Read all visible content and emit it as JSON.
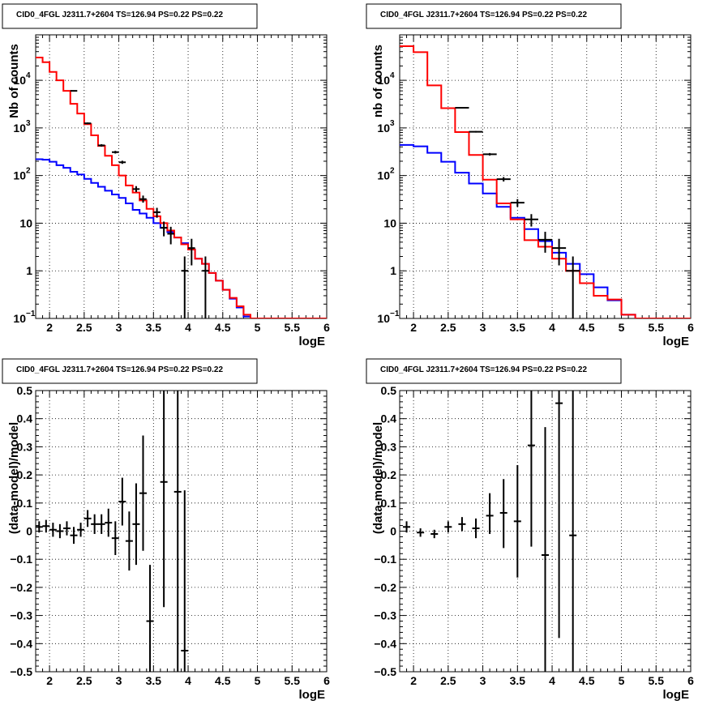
{
  "colors": {
    "data": "#000000",
    "model": "#ff0000",
    "background": "#0000ff",
    "grid": "#000000"
  },
  "panels": [
    {
      "title": "CID0_4FGL J2311.7+2604 TS=126.94 PS=0.22 PS=0.22",
      "chart_data": {
        "type": "histogram",
        "xlabel": "logE",
        "ylabel": "Nb of counts",
        "xlim": [
          1.8,
          6.0
        ],
        "ylim": [
          0.1,
          90000
        ],
        "log_y": true,
        "grid": true,
        "x_ticks": [
          {
            "v": 2,
            "t": "2"
          },
          {
            "v": 2.5,
            "t": "2.5"
          },
          {
            "v": 3,
            "t": "3"
          },
          {
            "v": 3.5,
            "t": "3.5"
          },
          {
            "v": 4,
            "t": "4"
          },
          {
            "v": 4.5,
            "t": "4.5"
          },
          {
            "v": 5,
            "t": "5"
          },
          {
            "v": 5.5,
            "t": "5.5"
          },
          {
            "v": 6,
            "t": "6"
          }
        ],
        "y_ticks": [
          {
            "v": 0.1,
            "t": "10",
            "sup": "−1"
          },
          {
            "v": 1,
            "t": "1"
          },
          {
            "v": 10,
            "t": "10"
          },
          {
            "v": 100,
            "t": "10",
            "sup": "2"
          },
          {
            "v": 1000,
            "t": "10",
            "sup": "3"
          },
          {
            "v": 10000,
            "t": "10",
            "sup": "4"
          }
        ],
        "bin_edges": [
          1.8,
          1.9,
          2.0,
          2.1,
          2.2,
          2.3,
          2.4,
          2.5,
          2.6,
          2.7,
          2.8,
          2.9,
          3.0,
          3.1,
          3.2,
          3.3,
          3.4,
          3.5,
          3.6,
          3.7,
          3.8,
          3.9,
          4.0,
          4.1,
          4.2,
          4.3,
          4.4,
          4.5,
          4.6,
          4.7,
          4.8,
          4.9,
          5.0,
          5.1,
          5.2,
          5.3,
          5.4,
          5.5,
          5.6,
          5.7,
          5.8,
          5.9,
          6.0
        ],
        "series": [
          {
            "name": "",
            "color": "#0000ff",
            "style": "step",
            "values": [
              220,
              215,
              195,
              165,
              145,
              120,
              105,
              85,
              70,
              58,
              48,
              40,
              34,
              26,
              19,
              16,
              13,
              10,
              8,
              6.5,
              5,
              3.8,
              2.8,
              1.8,
              1.4,
              0.9,
              0.62,
              0.4,
              0.26,
              0.17,
              0.11,
              0.1,
              0.1,
              0.1,
              0.1,
              0.1,
              0.1,
              0.1,
              0.1,
              0.1,
              0.1,
              0.1
            ]
          },
          {
            "name": "",
            "color": "#ff0000",
            "style": "step",
            "values": [
              30000,
              24000,
              15000,
              10000,
              6000,
              3200,
              2000,
              1200,
              700,
              420,
              260,
              165,
              100,
              62,
              44,
              30,
              20,
              14,
              10,
              7,
              5,
              3.6,
              2.8,
              1.8,
              1.4,
              0.9,
              0.62,
              0.4,
              0.27,
              0.18,
              0.12,
              0.1,
              0.1,
              0.1,
              0.1,
              0.1,
              0.1,
              0.1,
              0.1,
              0.1,
              0.1,
              0.1
            ]
          },
          {
            "name": "",
            "color": "#000000",
            "style": "errorbar",
            "points": [
              {
                "x": 2.35,
                "y": 6000,
                "ylo": 5900,
                "yhi": 6100
              },
              {
                "x": 2.55,
                "y": 1250,
                "ylo": 1200,
                "yhi": 1300
              },
              {
                "x": 2.75,
                "y": 430,
                "ylo": 405,
                "yhi": 455
              },
              {
                "x": 2.95,
                "y": 310,
                "ylo": 290,
                "yhi": 330
              },
              {
                "x": 3.05,
                "y": 190,
                "ylo": 176,
                "yhi": 205
              },
              {
                "x": 3.25,
                "y": 52,
                "ylo": 45,
                "yhi": 60
              },
              {
                "x": 3.35,
                "y": 32,
                "ylo": 27,
                "yhi": 38
              },
              {
                "x": 3.55,
                "y": 17,
                "ylo": 13,
                "yhi": 21
              },
              {
                "x": 3.65,
                "y": 8,
                "ylo": 5.3,
                "yhi": 10.8
              },
              {
                "x": 3.75,
                "y": 6,
                "ylo": 3.6,
                "yhi": 8.4
              },
              {
                "x": 3.95,
                "y": 1,
                "ylo": 0.1,
                "yhi": 2
              },
              {
                "x": 4.05,
                "y": 3,
                "ylo": 1.3,
                "yhi": 4.7
              },
              {
                "x": 4.25,
                "y": 1,
                "ylo": 0.1,
                "yhi": 2
              }
            ]
          }
        ]
      }
    },
    {
      "title": "CID0_4FGL J2311.7+2604 TS=126.94 PS=0.22 PS=0.22",
      "chart_data": {
        "type": "histogram",
        "xlabel": "logE",
        "ylabel": "nb of counts",
        "xlim": [
          1.8,
          6.0
        ],
        "ylim": [
          0.1,
          90000
        ],
        "log_y": true,
        "grid": true,
        "x_ticks": [
          {
            "v": 2,
            "t": "2"
          },
          {
            "v": 2.5,
            "t": "2.5"
          },
          {
            "v": 3,
            "t": "3"
          },
          {
            "v": 3.5,
            "t": "3.5"
          },
          {
            "v": 4,
            "t": "4"
          },
          {
            "v": 4.5,
            "t": "4.5"
          },
          {
            "v": 5,
            "t": "5"
          },
          {
            "v": 5.5,
            "t": "5.5"
          },
          {
            "v": 6,
            "t": "6"
          }
        ],
        "y_ticks": [
          {
            "v": 0.1,
            "t": "10",
            "sup": "−1"
          },
          {
            "v": 1,
            "t": "1"
          },
          {
            "v": 10,
            "t": "10"
          },
          {
            "v": 100,
            "t": "10",
            "sup": "2"
          },
          {
            "v": 1000,
            "t": "10",
            "sup": "3"
          },
          {
            "v": 10000,
            "t": "10",
            "sup": "4"
          }
        ],
        "bin_edges": [
          1.8,
          2.0,
          2.2,
          2.4,
          2.6,
          2.8,
          3.0,
          3.2,
          3.4,
          3.6,
          3.8,
          4.0,
          4.2,
          4.4,
          4.6,
          4.8,
          5.0,
          5.2,
          5.4,
          5.6,
          5.8,
          6.0
        ],
        "series": [
          {
            "name": "",
            "color": "#0000ff",
            "style": "step",
            "values": [
              440,
              410,
              300,
              195,
              115,
              68,
              42,
              22,
              13,
              7.5,
              4.2,
              2.4,
              1.4,
              0.85,
              0.45,
              0.24,
              0.12,
              0.1,
              0.1,
              0.1,
              0.1
            ]
          },
          {
            "name": "",
            "color": "#ff0000",
            "style": "step",
            "values": [
              52000,
              39000,
              7800,
              2600,
              820,
              270,
              82,
              26,
              12,
              4.4,
              3.2,
              1.8,
              1.0,
              0.55,
              0.3,
              0.25,
              0.12,
              0.1,
              0.1,
              0.1,
              0.1
            ]
          },
          {
            "name": "",
            "color": "#000000",
            "style": "errorbar",
            "points": [
              {
                "x": 2.7,
                "y": 2650,
                "ylo": 2600,
                "yhi": 2700
              },
              {
                "x": 2.9,
                "y": 830,
                "ylo": 800,
                "yhi": 860
              },
              {
                "x": 3.1,
                "y": 280,
                "ylo": 263,
                "yhi": 297
              },
              {
                "x": 3.3,
                "y": 84,
                "ylo": 75,
                "yhi": 93
              },
              {
                "x": 3.5,
                "y": 27,
                "ylo": 22,
                "yhi": 32
              },
              {
                "x": 3.7,
                "y": 12,
                "ylo": 8.5,
                "yhi": 15.5
              },
              {
                "x": 3.9,
                "y": 4.5,
                "ylo": 2.4,
                "yhi": 6.6
              },
              {
                "x": 4.1,
                "y": 3,
                "ylo": 1.3,
                "yhi": 4.7
              },
              {
                "x": 4.3,
                "y": 1,
                "ylo": 0.1,
                "yhi": 2
              }
            ]
          }
        ]
      }
    },
    {
      "title": "CID0_4FGL J2311.7+2604 TS=126.94 PS=0.22 PS=0.22",
      "chart_data": {
        "type": "errorbar",
        "xlabel": "logE",
        "ylabel": "(data-model)/model",
        "xlim": [
          1.8,
          6.0
        ],
        "ylim": [
          -0.5,
          0.5
        ],
        "log_y": false,
        "grid": true,
        "x_ticks": [
          {
            "v": 2,
            "t": "2"
          },
          {
            "v": 2.5,
            "t": "2.5"
          },
          {
            "v": 3,
            "t": "3"
          },
          {
            "v": 3.5,
            "t": "3.5"
          },
          {
            "v": 4,
            "t": "4"
          },
          {
            "v": 4.5,
            "t": "4.5"
          },
          {
            "v": 5,
            "t": "5"
          },
          {
            "v": 5.5,
            "t": "5.5"
          },
          {
            "v": 6,
            "t": "6"
          }
        ],
        "y_ticks": [
          {
            "v": -0.5,
            "t": "−0.5"
          },
          {
            "v": -0.4,
            "t": "−0.4"
          },
          {
            "v": -0.3,
            "t": "−0.3"
          },
          {
            "v": -0.2,
            "t": "−0.2"
          },
          {
            "v": -0.1,
            "t": "−0.1"
          },
          {
            "v": 0,
            "t": "0"
          },
          {
            "v": 0.1,
            "t": "0.1"
          },
          {
            "v": 0.2,
            "t": "0.2"
          },
          {
            "v": 0.3,
            "t": "0.3"
          },
          {
            "v": 0.4,
            "t": "0.4"
          },
          {
            "v": 0.5,
            "t": "0.5"
          }
        ],
        "series": [
          {
            "name": "",
            "color": "#000000",
            "style": "errorbar",
            "points": [
              {
                "x": 1.85,
                "y": 0.015,
                "ylo": -0.005,
                "yhi": 0.035
              },
              {
                "x": 1.95,
                "y": 0.018,
                "ylo": -0.005,
                "yhi": 0.04
              },
              {
                "x": 2.05,
                "y": 0.005,
                "ylo": -0.02,
                "yhi": 0.03
              },
              {
                "x": 2.15,
                "y": 0.0,
                "ylo": -0.025,
                "yhi": 0.025
              },
              {
                "x": 2.25,
                "y": 0.01,
                "ylo": -0.015,
                "yhi": 0.035
              },
              {
                "x": 2.35,
                "y": -0.015,
                "ylo": -0.045,
                "yhi": 0.015
              },
              {
                "x": 2.45,
                "y": 0.005,
                "ylo": -0.02,
                "yhi": 0.03
              },
              {
                "x": 2.55,
                "y": 0.045,
                "ylo": 0.015,
                "yhi": 0.075
              },
              {
                "x": 2.65,
                "y": 0.025,
                "ylo": -0.01,
                "yhi": 0.06
              },
              {
                "x": 2.75,
                "y": 0.025,
                "ylo": -0.01,
                "yhi": 0.06
              },
              {
                "x": 2.85,
                "y": 0.03,
                "ylo": -0.02,
                "yhi": 0.08
              },
              {
                "x": 2.95,
                "y": -0.025,
                "ylo": -0.085,
                "yhi": 0.035
              },
              {
                "x": 3.05,
                "y": 0.105,
                "ylo": 0.02,
                "yhi": 0.19
              },
              {
                "x": 3.15,
                "y": -0.035,
                "ylo": -0.14,
                "yhi": 0.07
              },
              {
                "x": 3.25,
                "y": 0.025,
                "ylo": -0.12,
                "yhi": 0.17
              },
              {
                "x": 3.35,
                "y": 0.135,
                "ylo": -0.07,
                "yhi": 0.34
              },
              {
                "x": 3.45,
                "y": -0.32,
                "ylo": -0.5,
                "yhi": -0.12
              },
              {
                "x": 3.65,
                "y": 0.175,
                "ylo": -0.27,
                "yhi": 0.5
              },
              {
                "x": 3.85,
                "y": 0.14,
                "ylo": -0.5,
                "yhi": 0.5
              },
              {
                "x": 3.95,
                "y": -0.425,
                "ylo": -0.5,
                "yhi": 0.145
              }
            ]
          }
        ]
      }
    },
    {
      "title": "CID0_4FGL J2311.7+2604 TS=126.94 PS=0.22 PS=0.22",
      "chart_data": {
        "type": "errorbar",
        "xlabel": "logE",
        "ylabel": "(data-model)/model",
        "xlim": [
          1.8,
          6.0
        ],
        "ylim": [
          -0.5,
          0.5
        ],
        "log_y": false,
        "grid": true,
        "x_ticks": [
          {
            "v": 2,
            "t": "2"
          },
          {
            "v": 2.5,
            "t": "2.5"
          },
          {
            "v": 3,
            "t": "3"
          },
          {
            "v": 3.5,
            "t": "3.5"
          },
          {
            "v": 4,
            "t": "4"
          },
          {
            "v": 4.5,
            "t": "4.5"
          },
          {
            "v": 5,
            "t": "5"
          },
          {
            "v": 5.5,
            "t": "5.5"
          },
          {
            "v": 6,
            "t": "6"
          }
        ],
        "y_ticks": [
          {
            "v": -0.5,
            "t": "−0.5"
          },
          {
            "v": -0.4,
            "t": "−0.4"
          },
          {
            "v": -0.3,
            "t": "−0.3"
          },
          {
            "v": -0.2,
            "t": "−0.2"
          },
          {
            "v": -0.1,
            "t": "−0.1"
          },
          {
            "v": 0,
            "t": "0"
          },
          {
            "v": 0.1,
            "t": "0.1"
          },
          {
            "v": 0.2,
            "t": "0.2"
          },
          {
            "v": 0.3,
            "t": "0.3"
          },
          {
            "v": 0.4,
            "t": "0.4"
          },
          {
            "v": 0.5,
            "t": "0.5"
          }
        ],
        "series": [
          {
            "name": "",
            "color": "#000000",
            "style": "errorbar",
            "points": [
              {
                "x": 1.9,
                "y": 0.015,
                "ylo": -0.005,
                "yhi": 0.035
              },
              {
                "x": 2.1,
                "y": -0.005,
                "ylo": -0.02,
                "yhi": 0.01
              },
              {
                "x": 2.3,
                "y": -0.01,
                "ylo": -0.025,
                "yhi": 0.005
              },
              {
                "x": 2.5,
                "y": 0.015,
                "ylo": -0.005,
                "yhi": 0.035
              },
              {
                "x": 2.7,
                "y": 0.025,
                "ylo": 0.0,
                "yhi": 0.05
              },
              {
                "x": 2.9,
                "y": 0.01,
                "ylo": -0.025,
                "yhi": 0.045
              },
              {
                "x": 3.1,
                "y": 0.055,
                "ylo": -0.01,
                "yhi": 0.135
              },
              {
                "x": 3.3,
                "y": 0.065,
                "ylo": -0.06,
                "yhi": 0.185
              },
              {
                "x": 3.5,
                "y": 0.035,
                "ylo": -0.165,
                "yhi": 0.235
              },
              {
                "x": 3.7,
                "y": 0.305,
                "ylo": -0.055,
                "yhi": 0.5
              },
              {
                "x": 3.9,
                "y": -0.085,
                "ylo": -0.5,
                "yhi": 0.37
              },
              {
                "x": 4.1,
                "y": 0.455,
                "ylo": -0.38,
                "yhi": 0.5
              },
              {
                "x": 4.3,
                "y": -0.015,
                "ylo": -0.5,
                "yhi": 0.5
              }
            ]
          }
        ]
      }
    }
  ]
}
